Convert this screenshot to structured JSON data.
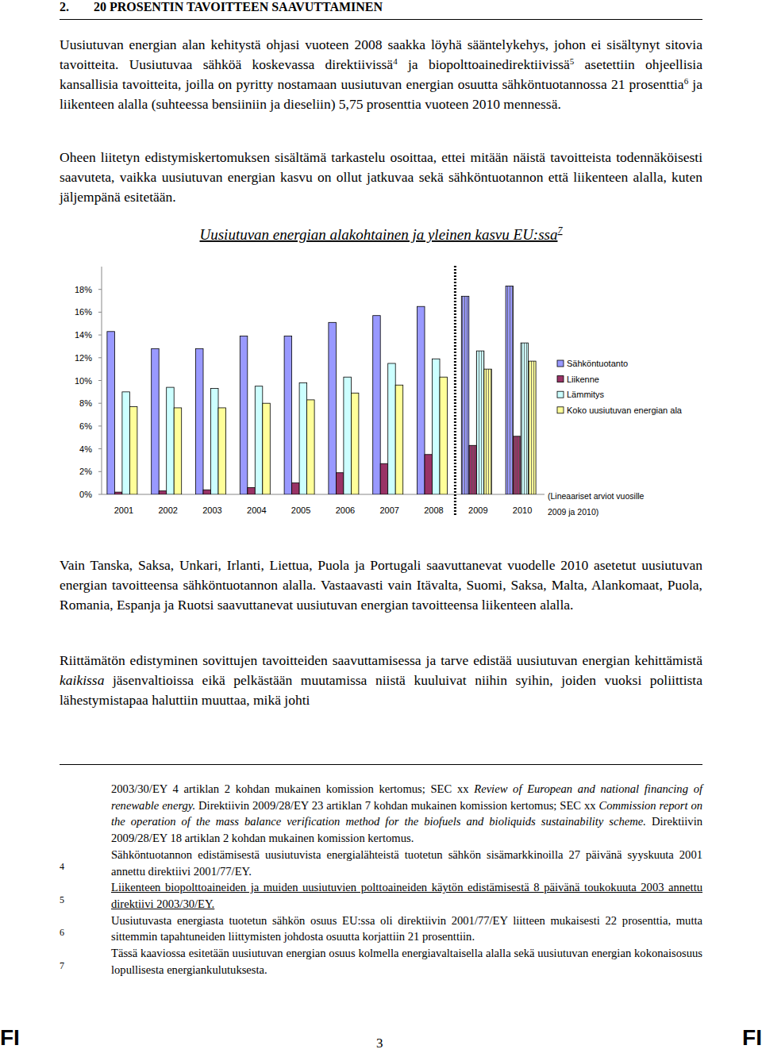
{
  "header": {
    "number": "2.",
    "title": "20 PROSENTIN TAVOITTEEN SAAVUTTAMINEN"
  },
  "paragraphs_before": [
    [
      {
        "t": "Uusiutuvan energian alan kehitystä ohjasi vuoteen 2008 saakka löyhä sääntelykehys, johon ei sisältynyt sitovia tavoitteita. Uusiutuvaa sähköä koskevassa direktiivissä"
      },
      {
        "sup": "4"
      },
      {
        "t": " ja biopolttoainedirektiivissä"
      },
      {
        "sup": "5"
      },
      {
        "t": " asetettiin ohjeellisia kansallisia tavoitteita, joilla on pyritty nostamaan uusiutuvan energian osuutta sähköntuotannossa 21 prosenttia"
      },
      {
        "sup": "6"
      },
      {
        "t": " ja liikenteen alalla (suhteessa bensiiniin ja dieseliin) 5,75 prosenttia vuoteen 2010 mennessä."
      }
    ],
    [
      {
        "t": "Oheen liitetyn edistymiskertomuksen sisältämä tarkastelu osoittaa, ettei mitään näistä tavoitteista todennäköisesti saavuteta, vaikka uusiutuvan energian kasvu on ollut jatkuvaa sekä sähköntuotannon että liikenteen alalla, kuten jäljempänä esitetään."
      }
    ]
  ],
  "chart_data": {
    "type": "bar",
    "title": "Uusiutuvan energian alakohtainen ja yleinen kasvu EU:ssa",
    "title_note": "7",
    "categories": [
      "2001",
      "2002",
      "2003",
      "2004",
      "2005",
      "2006",
      "2007",
      "2008",
      "2009",
      "2010"
    ],
    "series": [
      {
        "name": "Sähköntuotanto",
        "color": "#9999ff",
        "values": [
          14.3,
          12.8,
          12.8,
          13.9,
          13.9,
          15.1,
          15.7,
          16.5,
          17.4,
          18.3
        ]
      },
      {
        "name": "Liikenne",
        "color": "#993366",
        "values": [
          0.2,
          0.3,
          0.4,
          0.6,
          1.0,
          1.9,
          2.7,
          3.5,
          4.3,
          5.1
        ]
      },
      {
        "name": "Lämmitys",
        "color": "#ccffff",
        "values": [
          9.0,
          9.4,
          9.3,
          9.5,
          9.8,
          10.3,
          11.5,
          11.9,
          12.6,
          13.3
        ]
      },
      {
        "name": "Koko uusiutuvan energian ala",
        "color": "#ffff99",
        "values": [
          7.7,
          7.6,
          7.6,
          8.0,
          8.3,
          8.9,
          9.6,
          10.3,
          11.0,
          11.7
        ]
      }
    ],
    "ylim": [
      0,
      20
    ],
    "yticks": [
      {
        "value": 0,
        "label": "0%"
      },
      {
        "value": 2,
        "label": "2%"
      },
      {
        "value": 4,
        "label": "4%"
      },
      {
        "value": 6,
        "label": "6%"
      },
      {
        "value": 8,
        "label": "8%"
      },
      {
        "value": 10,
        "label": "10%"
      },
      {
        "value": 12,
        "label": "12%"
      },
      {
        "value": 14,
        "label": "14%"
      },
      {
        "value": 16,
        "label": "16%"
      },
      {
        "value": 18,
        "label": "18%"
      }
    ],
    "grid": false,
    "legend": "right",
    "annotations": [
      "(Lineaariset arviot vuosille",
      "2009 ja 2010)"
    ]
  },
  "paragraphs_after": [
    [
      {
        "t": "Vain Tanska, Saksa, Unkari, Irlanti, Liettua, Puola ja Portugali saavuttanevat vuodelle 2010 asetetut uusiutuvan energian tavoitteensa sähköntuotannon alalla. Vastaavasti vain Itävalta, Suomi, Saksa, Malta, Alankomaat, Puola, Romania, Espanja ja Ruotsi saavuttanevat uusiutuvan energian tavoitteensa liikenteen alalla."
      }
    ],
    [
      {
        "t": "Riittämätön edistyminen sovittujen tavoitteiden saavuttamisessa ja tarve edistää uusiutuvan energian kehittämistä "
      },
      {
        "i": "kaikissa"
      },
      {
        "t": " jäsenvaltioissa eikä pelkästään muutamissa niistä kuuluivat niihin syihin, joiden vuoksi poliittista lähestymistapaa haluttiin muuttaa, mikä johti"
      }
    ]
  ],
  "footnotes": {
    "continuation": [
      {
        "t": "2003/30/EY 4 artiklan 2 kohdan mukainen komission kertomus; SEC xx "
      },
      {
        "i": "Review of European and national financing of renewable energy."
      },
      {
        "t": " Direktiivin 2009/28/EY 23 artiklan 7 kohdan mukainen komission kertomus; SEC xx "
      },
      {
        "i": "Commission report on the operation of the mass balance verification method for the biofuels and bioliquids sustainability scheme."
      },
      {
        "t": " Direktiivin 2009/28/EY 18 artiklan 2 kohdan mukainen komission kertomus."
      }
    ],
    "numbers": [
      "4",
      "5",
      "6",
      "7"
    ],
    "notes": [
      [
        {
          "t": "Sähköntuotannon edistämisestä uusiutuvista energialähteistä tuotetun sähkön sisämarkkinoilla 27 päivänä syyskuuta 2001 annettu direktiivi 2001/77/EY."
        }
      ],
      [
        {
          "u": "Liikenteen biopolttoaineiden ja muiden uusiutuvien polttoaineiden käytön edistämisestä 8 päivänä toukokuuta 2003 annettu direktiivi 2003/30/EY."
        }
      ],
      [
        {
          "t": "Uusiutuvasta energiasta tuotetun sähkön osuus EU:ssa oli direktiivin 2001/77/EY liitteen mukaisesti 22 prosenttia, mutta sittemmin tapahtuneiden liittymisten johdosta osuutta korjattiin 21 prosenttiin."
        }
      ],
      [
        {
          "t": "Tässä kaaviossa esitetään uusiutuvan energian osuus kolmella energiavaltaisella alalla sekä uusiutuvan energian kokonaisosuus lopullisesta energiankulutuksesta."
        }
      ]
    ]
  },
  "footer": {
    "left": "FI",
    "page": "3",
    "right": "FI"
  }
}
